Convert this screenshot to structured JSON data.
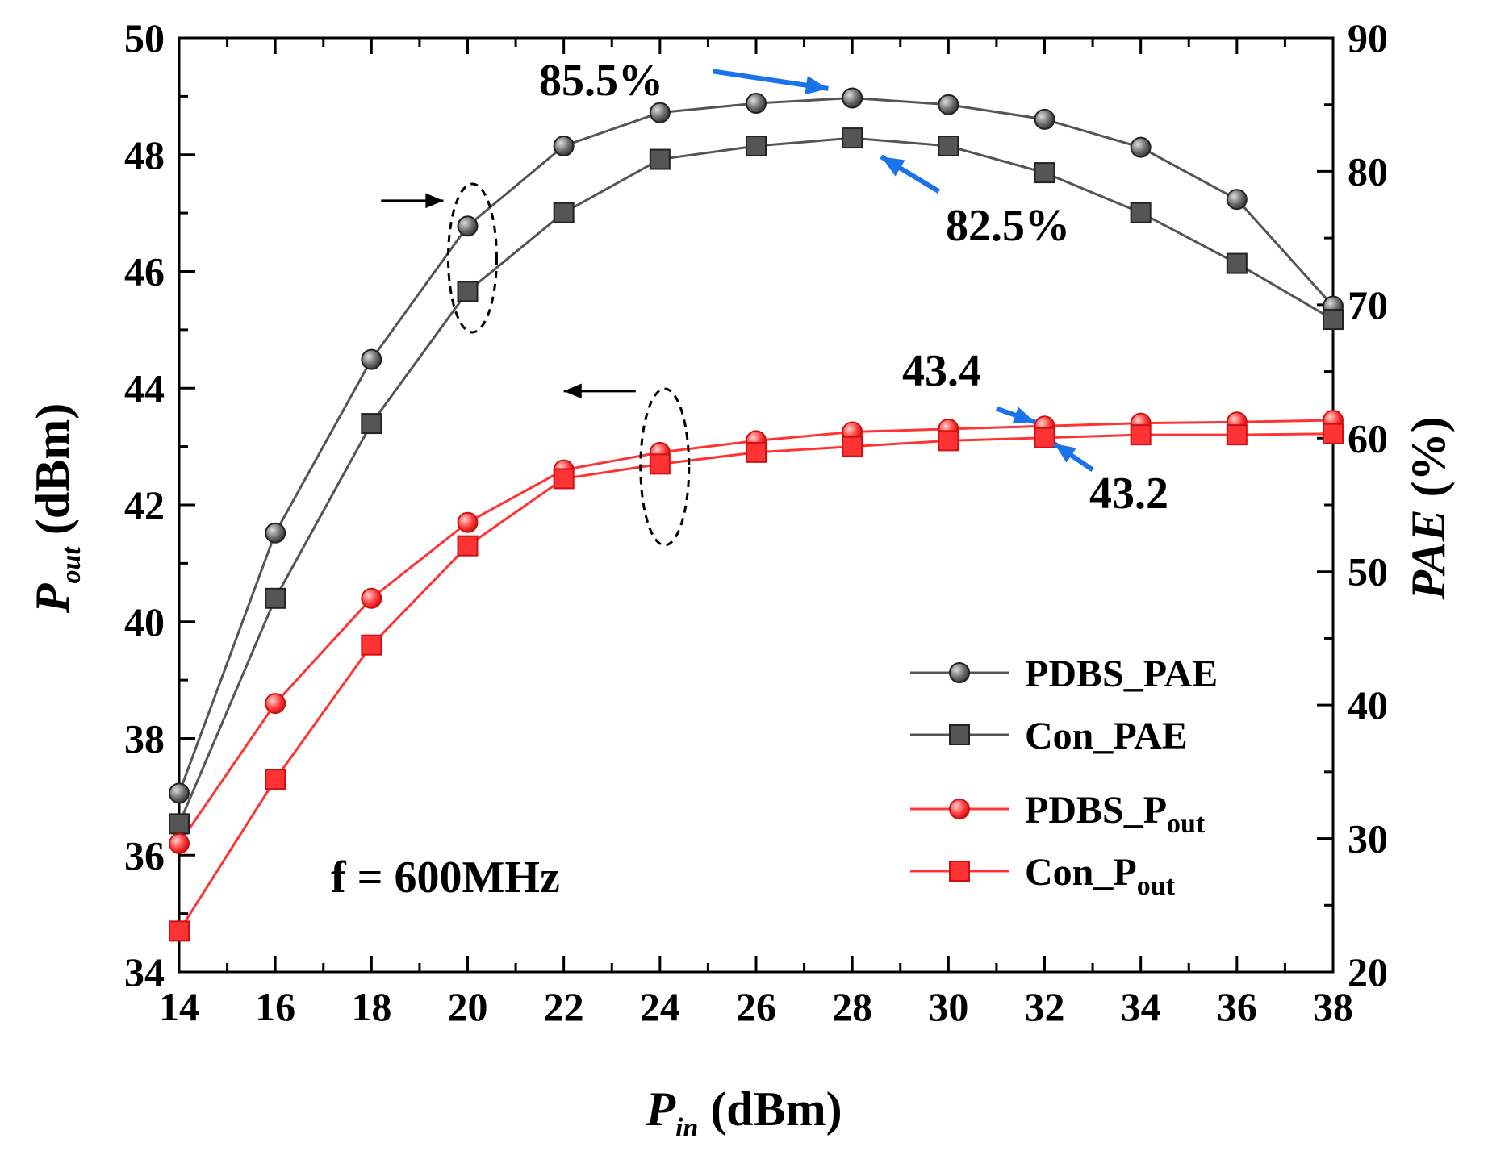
{
  "chart_data": {
    "type": "line",
    "x": [
      14,
      16,
      18,
      20,
      22,
      24,
      26,
      28,
      30,
      32,
      34,
      36,
      38
    ],
    "xlabel": {
      "main": "P",
      "sub": "in",
      "unit": " (dBm)"
    },
    "ylabel_left": {
      "main": "P",
      "sub": "out",
      "unit": " (dBm)"
    },
    "ylabel_right": {
      "main": "PAE",
      "unit": " (%)"
    },
    "xlim": [
      14,
      38
    ],
    "ylim_left": [
      34,
      50
    ],
    "ylim_right": [
      20,
      90
    ],
    "xticks": [
      "14",
      "16",
      "18",
      "20",
      "22",
      "24",
      "26",
      "28",
      "30",
      "32",
      "34",
      "36",
      "38"
    ],
    "yticks_left": [
      "34",
      "36",
      "38",
      "40",
      "42",
      "44",
      "46",
      "48",
      "50"
    ],
    "yticks_right": [
      "20",
      "30",
      "40",
      "50",
      "60",
      "70",
      "80",
      "90"
    ],
    "series": [
      {
        "name": "PDBS_PAE",
        "legend_main": "PDBS_PAE",
        "legend_sub": "",
        "axis": "right",
        "marker": "circle",
        "color": "#555555",
        "values": [
          33.4,
          52.9,
          65.9,
          75.9,
          81.9,
          84.4,
          85.1,
          85.5,
          85.0,
          83.9,
          81.8,
          77.9,
          69.9
        ]
      },
      {
        "name": "Con_PAE",
        "legend_main": "Con_PAE",
        "legend_sub": "",
        "axis": "right",
        "marker": "square",
        "color": "#555555",
        "values": [
          31.1,
          48.0,
          61.1,
          71.0,
          76.9,
          80.9,
          81.9,
          82.5,
          81.9,
          79.9,
          76.9,
          73.1,
          68.9
        ]
      },
      {
        "name": "PDBS_Pout",
        "legend_main": "PDBS_P",
        "legend_sub": "out",
        "axis": "left",
        "marker": "circle",
        "color": "#ff3333",
        "values": [
          36.2,
          38.6,
          40.4,
          41.7,
          42.6,
          42.9,
          43.1,
          43.25,
          43.3,
          43.35,
          43.4,
          43.42,
          43.45
        ]
      },
      {
        "name": "Con_Pout",
        "legend_main": "Con_P",
        "legend_sub": "out",
        "axis": "left",
        "marker": "square",
        "color": "#ff3333",
        "values": [
          34.7,
          37.3,
          39.6,
          41.3,
          42.45,
          42.7,
          42.9,
          43.0,
          43.1,
          43.15,
          43.2,
          43.2,
          43.22
        ]
      }
    ],
    "annotations": [
      {
        "text": "85.5%",
        "color": "#000000"
      },
      {
        "text": "82.5%",
        "color": "#000000"
      },
      {
        "text": "43.4",
        "color": "#000000"
      },
      {
        "text": "43.2",
        "color": "#000000"
      },
      {
        "text": "f = 600MHz",
        "color": "#000000"
      }
    ],
    "arrow_color": "#1a73e8",
    "legend_position": "bottom-right"
  }
}
